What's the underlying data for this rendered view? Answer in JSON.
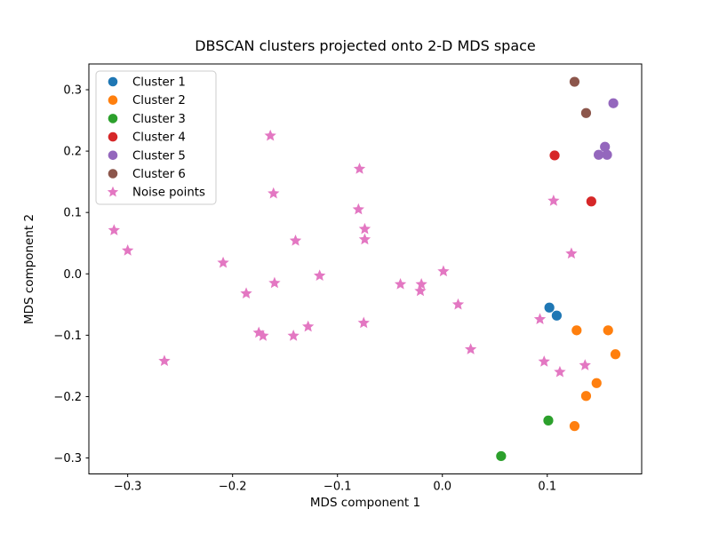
{
  "chart_data": {
    "type": "scatter",
    "title": "DBSCAN clusters projected onto 2-D MDS space",
    "xlabel": "MDS component 1",
    "ylabel": "MDS component 2",
    "xlim": [
      -0.337,
      0.19
    ],
    "ylim": [
      -0.326,
      0.342
    ],
    "xticks": [
      -0.3,
      -0.2,
      -0.1,
      0.0,
      0.1
    ],
    "yticks": [
      -0.3,
      -0.2,
      -0.1,
      0.0,
      0.1,
      0.2,
      0.3
    ],
    "grid": false,
    "legend_position": "upper left",
    "series": [
      {
        "name": "Cluster 1",
        "marker": "circle",
        "color": "#1f77b4",
        "points": [
          [
            0.102,
            -0.055
          ],
          [
            0.109,
            -0.068
          ]
        ]
      },
      {
        "name": "Cluster 2",
        "marker": "circle",
        "color": "#ff7f0e",
        "points": [
          [
            0.128,
            -0.092
          ],
          [
            0.158,
            -0.092
          ],
          [
            0.165,
            -0.131
          ],
          [
            0.147,
            -0.178
          ],
          [
            0.137,
            -0.199
          ],
          [
            0.126,
            -0.248
          ]
        ]
      },
      {
        "name": "Cluster 3",
        "marker": "circle",
        "color": "#2ca02c",
        "points": [
          [
            0.101,
            -0.239
          ],
          [
            0.056,
            -0.297
          ]
        ]
      },
      {
        "name": "Cluster 4",
        "marker": "circle",
        "color": "#d62728",
        "points": [
          [
            0.107,
            0.193
          ],
          [
            0.142,
            0.118
          ]
        ]
      },
      {
        "name": "Cluster 5",
        "marker": "circle",
        "color": "#9467bd",
        "points": [
          [
            0.163,
            0.278
          ],
          [
            0.155,
            0.207
          ],
          [
            0.149,
            0.194
          ],
          [
            0.157,
            0.194
          ]
        ]
      },
      {
        "name": "Cluster 6",
        "marker": "circle",
        "color": "#8c564b",
        "points": [
          [
            0.126,
            0.313
          ],
          [
            0.137,
            0.262
          ]
        ]
      },
      {
        "name": "Noise points",
        "marker": "star",
        "color": "#e377c2",
        "points": [
          [
            -0.313,
            0.071
          ],
          [
            -0.3,
            0.038
          ],
          [
            -0.265,
            -0.142
          ],
          [
            -0.209,
            0.018
          ],
          [
            -0.187,
            -0.032
          ],
          [
            -0.164,
            0.225
          ],
          [
            -0.161,
            0.131
          ],
          [
            -0.16,
            -0.015
          ],
          [
            -0.175,
            -0.096
          ],
          [
            -0.171,
            -0.101
          ],
          [
            -0.142,
            -0.101
          ],
          [
            -0.14,
            0.054
          ],
          [
            -0.128,
            -0.086
          ],
          [
            -0.117,
            -0.003
          ],
          [
            -0.08,
            0.105
          ],
          [
            -0.079,
            0.171
          ],
          [
            -0.074,
            0.073
          ],
          [
            -0.074,
            0.056
          ],
          [
            -0.075,
            -0.08
          ],
          [
            -0.04,
            -0.017
          ],
          [
            -0.02,
            -0.017
          ],
          [
            -0.021,
            -0.028
          ],
          [
            0.001,
            0.004
          ],
          [
            0.015,
            -0.05
          ],
          [
            0.027,
            -0.123
          ],
          [
            0.093,
            -0.074
          ],
          [
            0.097,
            -0.143
          ],
          [
            0.112,
            -0.16
          ],
          [
            0.136,
            -0.149
          ],
          [
            0.106,
            0.119
          ],
          [
            0.123,
            0.033
          ]
        ]
      }
    ]
  }
}
